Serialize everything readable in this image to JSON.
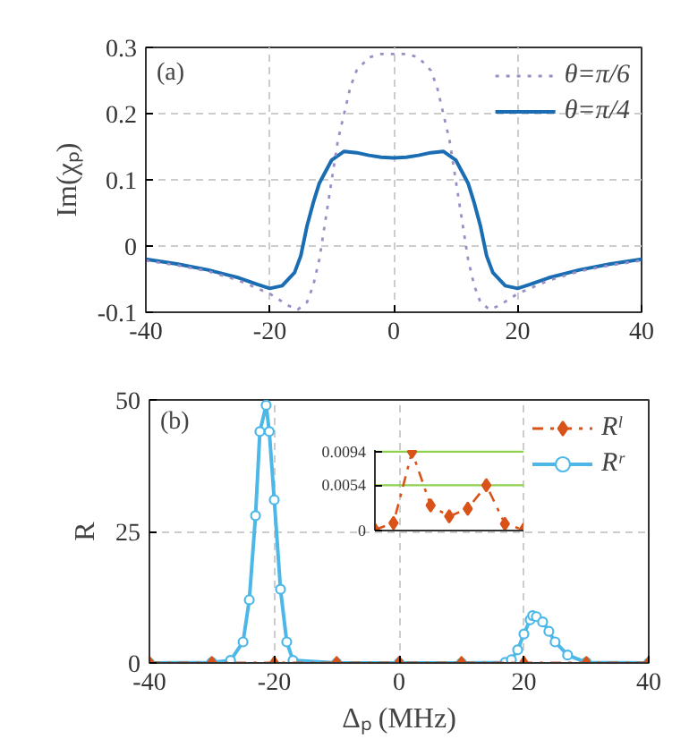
{
  "chart_data": [
    {
      "type": "line",
      "annotations": [
        "(a)"
      ],
      "ylabel": "Im(χₚ)",
      "xlim": [
        -40,
        40
      ],
      "ylim": [
        -0.1,
        0.3
      ],
      "xticks": [
        -40,
        -20,
        0,
        20,
        40
      ],
      "yticks": [
        -0.1,
        0,
        0.1,
        0.2,
        0.3
      ],
      "grid": true,
      "legend": "top right",
      "series": [
        {
          "name": "θ=π/6",
          "color": "#9b8ec4",
          "line_style": "dotted",
          "x": [
            -40,
            -35,
            -30,
            -25,
            -20,
            -17,
            -15.5,
            -14,
            -13,
            -12,
            -11,
            -10,
            -9,
            -8,
            -7,
            -6,
            -4,
            -2,
            0,
            2,
            4,
            6,
            7,
            8,
            9,
            10,
            11,
            12,
            13,
            14,
            15.5,
            17,
            20,
            25,
            30,
            35,
            40
          ],
          "values": [
            -0.022,
            -0.029,
            -0.038,
            -0.052,
            -0.072,
            -0.09,
            -0.096,
            -0.085,
            -0.06,
            -0.02,
            0.04,
            0.1,
            0.16,
            0.2,
            0.24,
            0.265,
            0.285,
            0.29,
            0.29,
            0.29,
            0.285,
            0.265,
            0.24,
            0.2,
            0.16,
            0.1,
            0.04,
            -0.02,
            -0.06,
            -0.085,
            -0.096,
            -0.09,
            -0.072,
            -0.052,
            -0.038,
            -0.029,
            -0.022
          ]
        },
        {
          "name": "θ=π/4",
          "color": "#1a6db3",
          "line_style": "solid",
          "x": [
            -40,
            -35,
            -30,
            -25,
            -22,
            -20,
            -18,
            -16,
            -15,
            -14,
            -13,
            -12,
            -10,
            -8,
            -6,
            -4,
            -2,
            0,
            2,
            4,
            6,
            8,
            10,
            12,
            13,
            14,
            15,
            16,
            18,
            20,
            22,
            25,
            30,
            35,
            40
          ],
          "values": [
            -0.02,
            -0.027,
            -0.036,
            -0.048,
            -0.058,
            -0.064,
            -0.06,
            -0.04,
            -0.015,
            0.03,
            0.065,
            0.095,
            0.13,
            0.143,
            0.141,
            0.137,
            0.134,
            0.133,
            0.134,
            0.137,
            0.141,
            0.143,
            0.13,
            0.095,
            0.065,
            0.03,
            -0.015,
            -0.04,
            -0.06,
            -0.064,
            -0.058,
            -0.048,
            -0.036,
            -0.027,
            -0.02
          ]
        }
      ]
    },
    {
      "type": "line",
      "annotations": [
        "(b)"
      ],
      "xlabel": "Δₚ (MHz)",
      "ylabel": "R",
      "xlim": [
        -40,
        40
      ],
      "ylim": [
        0,
        50
      ],
      "xticks": [
        -40,
        -20,
        0,
        20,
        40
      ],
      "yticks": [
        0,
        25,
        50
      ],
      "grid": true,
      "legend": "top right",
      "series": [
        {
          "name": "Rˡ",
          "color": "#d95319",
          "line_style": "dashed",
          "marker": "diamond",
          "x": [
            -40,
            -30,
            -20,
            -10,
            0,
            10,
            20,
            30,
            40
          ],
          "values": [
            0,
            0,
            0,
            0,
            0,
            0,
            0,
            0,
            0
          ]
        },
        {
          "name": "Rʳ",
          "color": "#4db8e8",
          "line_style": "solid",
          "marker": "circle",
          "x": [
            -40,
            -30,
            -27,
            -25,
            -24,
            -23,
            -22.3,
            -21.3,
            -20.8,
            -20,
            -19,
            -18,
            -17,
            -10,
            0,
            10,
            17,
            18,
            19,
            20,
            21,
            21.4,
            22,
            23,
            24,
            25,
            27,
            30,
            40
          ],
          "values": [
            0,
            0.1,
            0.5,
            4,
            12,
            28,
            44,
            49,
            44,
            31,
            14,
            4,
            0.5,
            0,
            0,
            0,
            0.1,
            0.6,
            2.5,
            5.5,
            8.2,
            9,
            8.8,
            7.8,
            6,
            4,
            1.5,
            0.1,
            0
          ]
        }
      ]
    },
    {
      "type": "line",
      "categories": [
        null,
        null,
        null,
        null,
        null,
        null,
        null,
        null,
        null
      ],
      "ylim": [
        0,
        0.0096
      ],
      "yticks": [
        0,
        0.0054,
        0.0094
      ],
      "ref_lines": [
        {
          "axis": "y",
          "value": 0.0054,
          "color": "#8fd14f"
        },
        {
          "axis": "y",
          "value": 0.0094,
          "color": "#8fd14f"
        }
      ],
      "tick_labels": "y",
      "series": [
        {
          "color": "#d95319",
          "line_style": "dashed",
          "marker": "diamond",
          "values": [
            0.0001,
            0.0009,
            0.0094,
            0.003,
            0.0017,
            0.0026,
            0.0054,
            0.0008,
            0.0001
          ]
        }
      ]
    }
  ]
}
